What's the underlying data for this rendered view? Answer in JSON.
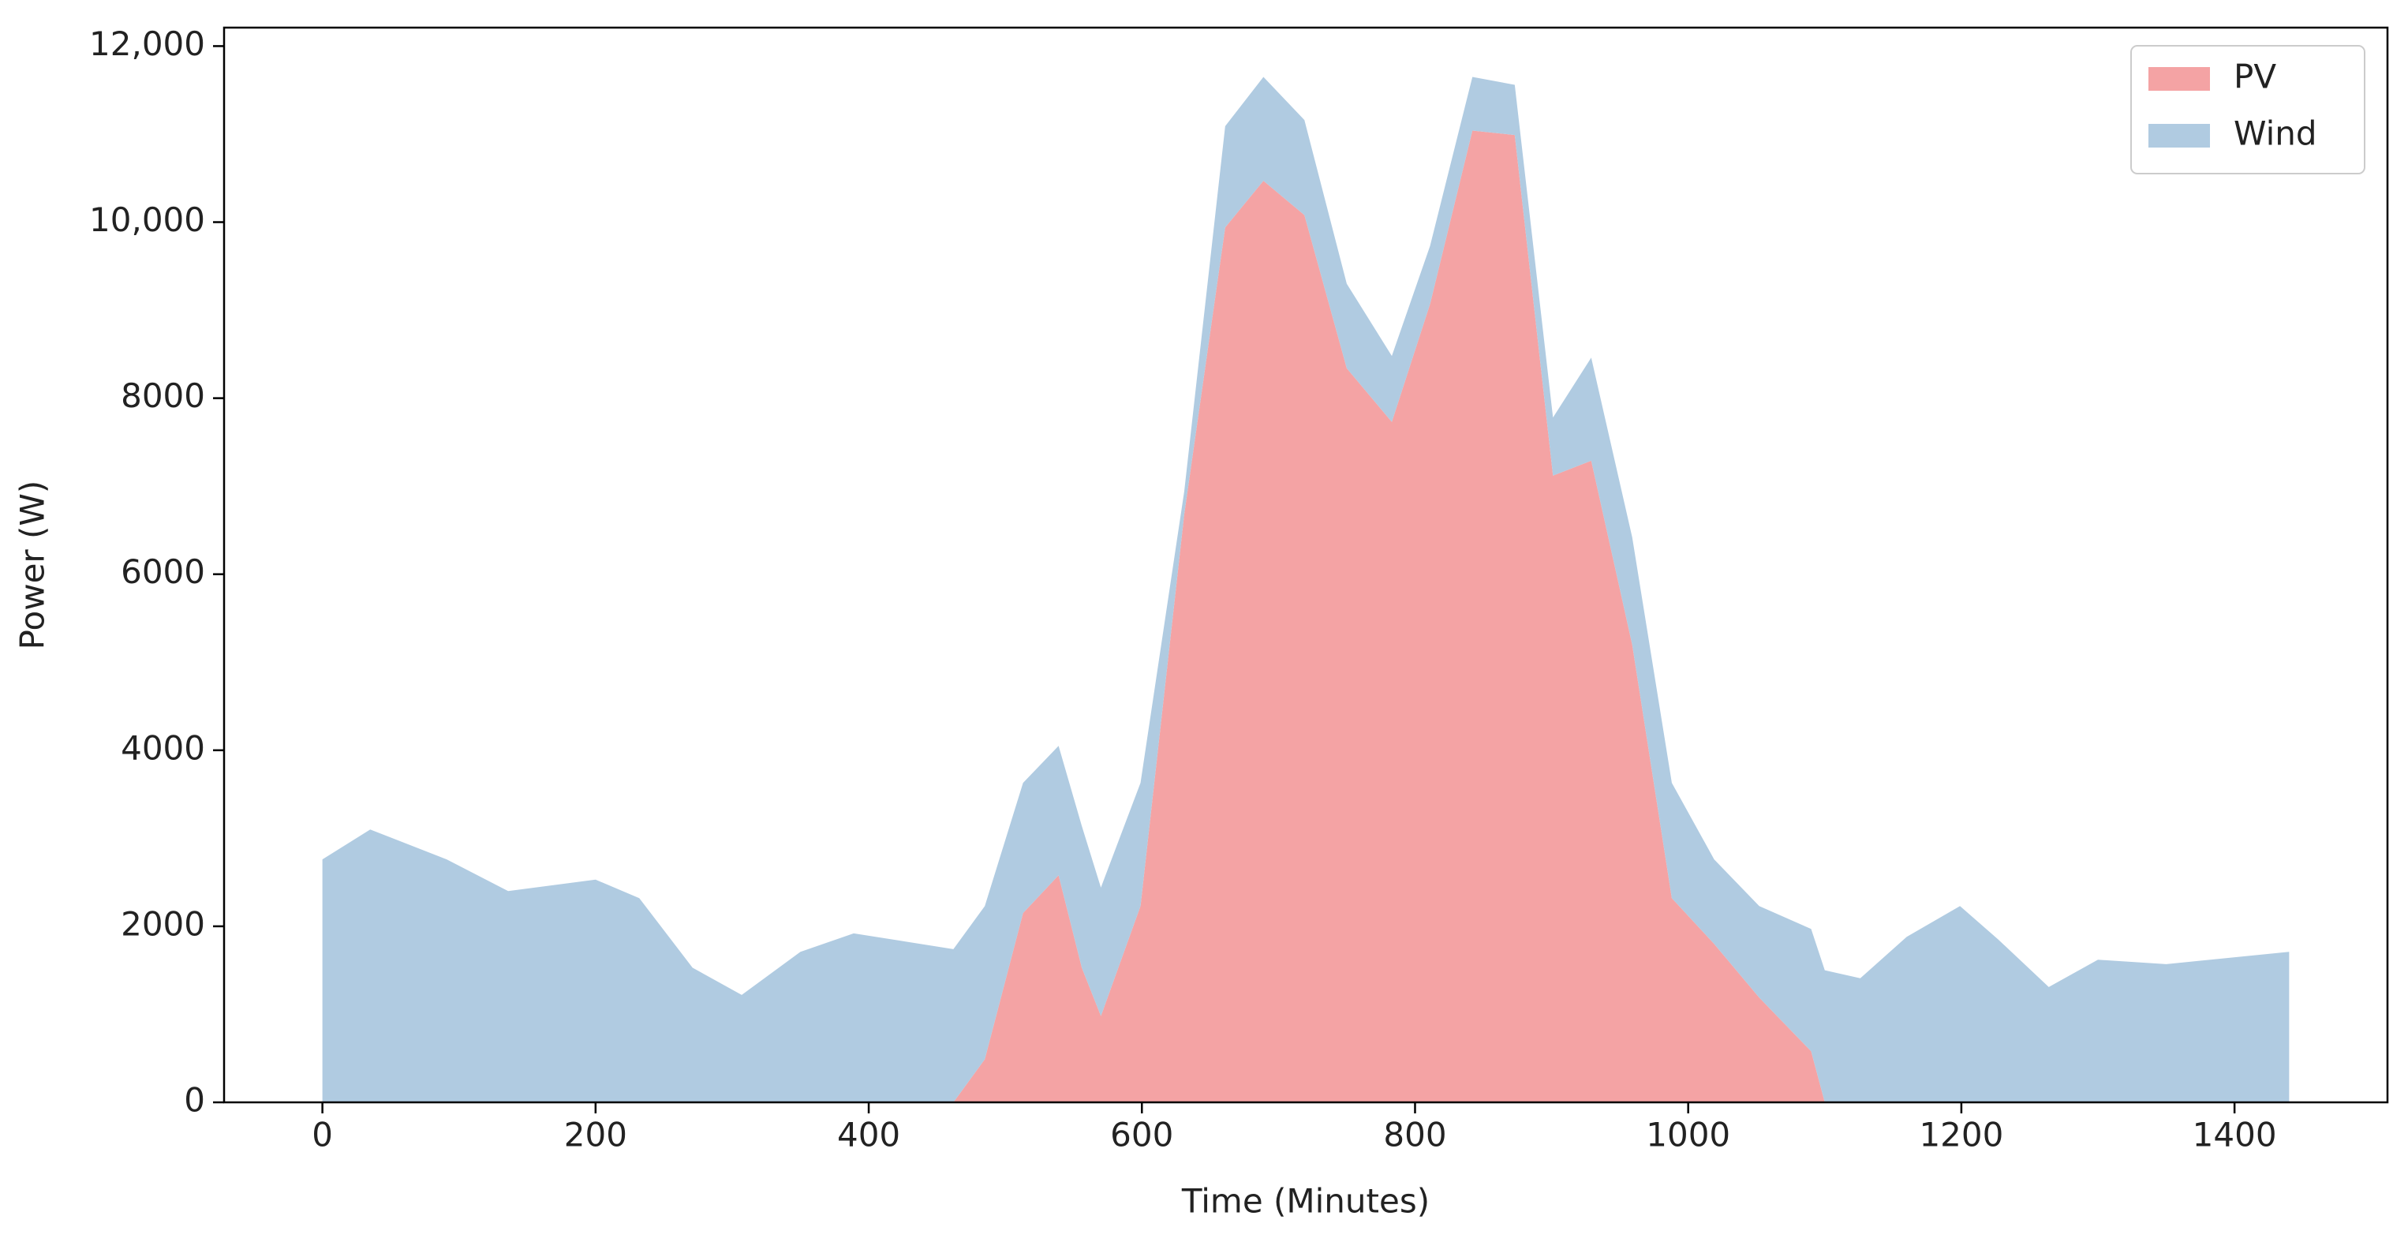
{
  "chart_data": {
    "type": "stackedarea",
    "xlabel": "Time (Minutes)",
    "ylabel": "Power (W)",
    "x": [
      0,
      35,
      91,
      136,
      200,
      232,
      271,
      307,
      350,
      389,
      462,
      485,
      513,
      539,
      556,
      570,
      599,
      631,
      661,
      689,
      719,
      750,
      783,
      811,
      842,
      873,
      901,
      929,
      959,
      988,
      1019,
      1052,
      1090,
      1100,
      1126,
      1160,
      1199,
      1227,
      1264,
      1300,
      1350,
      1440
    ],
    "series": [
      {
        "name": "PV",
        "color": "#f4a3a4",
        "values": [
          0,
          0,
          0,
          0,
          0,
          0,
          0,
          0,
          0,
          0,
          0,
          490,
          2150,
          2580,
          1530,
          980,
          2230,
          6680,
          9940,
          10470,
          10080,
          8340,
          7730,
          9070,
          11040,
          10990,
          7120,
          7290,
          5200,
          2320,
          1800,
          1190,
          580,
          0,
          0,
          0,
          0,
          0,
          0,
          0,
          0,
          0
        ]
      },
      {
        "name": "Wind",
        "color": "#b0cbe1",
        "values": [
          2760,
          3100,
          2760,
          2400,
          2530,
          2320,
          1530,
          1220,
          1710,
          1920,
          1740,
          1740,
          1480,
          1470,
          1610,
          1460,
          1400,
          260,
          1150,
          1180,
          1080,
          960,
          750,
          660,
          610,
          570,
          660,
          1170,
          1220,
          1310,
          960,
          1040,
          1390,
          1500,
          1410,
          1880,
          2230,
          1850,
          1310,
          1620,
          1570,
          1710
        ]
      }
    ],
    "xlim": [
      -72,
      1512
    ],
    "xticks": [
      0,
      200,
      400,
      600,
      800,
      1000,
      1200,
      1400
    ],
    "ylim": [
      0,
      12210
    ],
    "yticks": [
      0,
      2000,
      4000,
      6000,
      8000,
      {
        "value": 10000,
        "label": "10,000"
      },
      {
        "value": 12000,
        "label": "12,000"
      }
    ],
    "legend": "upper right"
  }
}
